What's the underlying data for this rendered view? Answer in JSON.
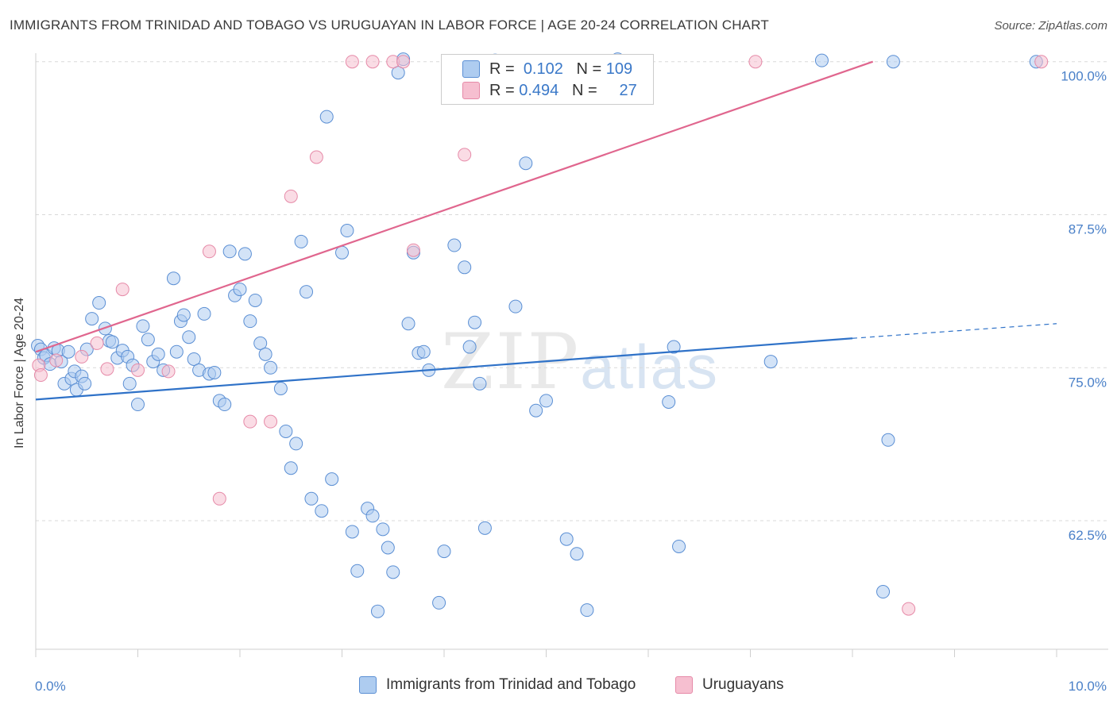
{
  "title": "IMMIGRANTS FROM TRINIDAD AND TOBAGO VS URUGUAYAN IN LABOR FORCE | AGE 20-24 CORRELATION CHART",
  "source": "Source: ZipAtlas.com",
  "watermark": {
    "zip": "ZIP",
    "atlas": "atlas"
  },
  "legend": {
    "rows": [
      {
        "r_label": "R =",
        "r_value": "0.102",
        "n_label": "N =",
        "n_value": "109"
      },
      {
        "r_label": "R =",
        "r_value": "0.494",
        "n_label": "N =",
        "n_value": "27"
      }
    ]
  },
  "bottom_legend": [
    "Immigrants from Trinidad and Tobago",
    "Uruguayans"
  ],
  "colors": {
    "blue_fill": "#aeccf0",
    "blue_stroke": "#5b8fd4",
    "blue_line": "#2f72c8",
    "pink_fill": "#f6bfd0",
    "pink_stroke": "#e68aa8",
    "pink_line": "#e0668e",
    "tick_text": "#4a80c8",
    "grid": "#d9d9d9"
  },
  "chart_data": {
    "type": "scatter",
    "title": "IMMIGRANTS FROM TRINIDAD AND TOBAGO VS URUGUAYAN IN LABOR FORCE | AGE 20-24 CORRELATION CHART",
    "xlabel": "",
    "ylabel": "In Labor Force | Age 20-24",
    "xlim": [
      0,
      10
    ],
    "ylim": [
      52,
      100.5
    ],
    "x_tick_labels": [
      {
        "value": 0,
        "label": "0.0%"
      },
      {
        "value": 10,
        "label": "10.0%"
      }
    ],
    "y_tick_labels": [
      {
        "value": 62.5,
        "label": "62.5%"
      },
      {
        "value": 75,
        "label": "75.0%"
      },
      {
        "value": 87.5,
        "label": "87.5%"
      },
      {
        "value": 100,
        "label": "100.0%"
      }
    ],
    "grid": "horizontal dashed",
    "legend_position": "top-center",
    "series": [
      {
        "name": "Immigrants from Trinidad and Tobago",
        "color": "#aeccf0",
        "points": [
          [
            0.02,
            76.8
          ],
          [
            0.05,
            76.5
          ],
          [
            0.08,
            75.8
          ],
          [
            0.1,
            76
          ],
          [
            0.14,
            75.3
          ],
          [
            0.18,
            76.6
          ],
          [
            0.22,
            76.4
          ],
          [
            0.25,
            75.5
          ],
          [
            0.28,
            73.7
          ],
          [
            0.32,
            76.3
          ],
          [
            0.35,
            74.1
          ],
          [
            0.38,
            74.7
          ],
          [
            0.4,
            73.2
          ],
          [
            0.45,
            74.3
          ],
          [
            0.48,
            73.7
          ],
          [
            0.5,
            76.5
          ],
          [
            0.55,
            79.0
          ],
          [
            0.62,
            80.3
          ],
          [
            0.68,
            78.2
          ],
          [
            0.72,
            77.2
          ],
          [
            0.75,
            77.1
          ],
          [
            0.8,
            75.8
          ],
          [
            0.85,
            76.4
          ],
          [
            0.9,
            75.9
          ],
          [
            0.92,
            73.7
          ],
          [
            0.95,
            75.2
          ],
          [
            1.0,
            72.0
          ],
          [
            1.05,
            78.4
          ],
          [
            1.1,
            77.3
          ],
          [
            1.15,
            75.5
          ],
          [
            1.2,
            76.1
          ],
          [
            1.25,
            74.8
          ],
          [
            1.35,
            82.3
          ],
          [
            1.38,
            76.3
          ],
          [
            1.42,
            78.8
          ],
          [
            1.45,
            79.3
          ],
          [
            1.5,
            77.5
          ],
          [
            1.55,
            75.7
          ],
          [
            1.6,
            74.8
          ],
          [
            1.65,
            79.4
          ],
          [
            1.7,
            74.5
          ],
          [
            1.75,
            74.6
          ],
          [
            1.8,
            72.3
          ],
          [
            1.85,
            72.0
          ],
          [
            1.9,
            84.5
          ],
          [
            1.95,
            80.9
          ],
          [
            2.0,
            81.4
          ],
          [
            2.05,
            84.3
          ],
          [
            2.1,
            78.8
          ],
          [
            2.15,
            80.5
          ],
          [
            2.2,
            77.0
          ],
          [
            2.25,
            76.1
          ],
          [
            2.3,
            75.0
          ],
          [
            2.4,
            73.3
          ],
          [
            2.45,
            69.8
          ],
          [
            2.5,
            66.8
          ],
          [
            2.55,
            68.8
          ],
          [
            2.6,
            85.3
          ],
          [
            2.65,
            81.2
          ],
          [
            2.7,
            64.3
          ],
          [
            2.8,
            63.3
          ],
          [
            2.85,
            95.5
          ],
          [
            2.9,
            65.9
          ],
          [
            3.0,
            84.4
          ],
          [
            3.05,
            86.2
          ],
          [
            3.1,
            61.6
          ],
          [
            3.15,
            58.4
          ],
          [
            3.25,
            63.5
          ],
          [
            3.3,
            62.9
          ],
          [
            3.35,
            55.1
          ],
          [
            3.4,
            61.8
          ],
          [
            3.45,
            60.3
          ],
          [
            3.5,
            58.3
          ],
          [
            3.55,
            99.1
          ],
          [
            3.6,
            100.2
          ],
          [
            3.65,
            78.6
          ],
          [
            3.7,
            84.4
          ],
          [
            3.75,
            76.2
          ],
          [
            3.8,
            76.3
          ],
          [
            3.85,
            74.8
          ],
          [
            3.95,
            55.8
          ],
          [
            4.0,
            60.0
          ],
          [
            4.1,
            85.0
          ],
          [
            4.2,
            83.2
          ],
          [
            4.25,
            76.7
          ],
          [
            4.3,
            78.7
          ],
          [
            4.35,
            73.7
          ],
          [
            4.4,
            61.9
          ],
          [
            4.5,
            100.1
          ],
          [
            4.6,
            100.0
          ],
          [
            4.7,
            80.0
          ],
          [
            4.8,
            91.7
          ],
          [
            4.9,
            71.5
          ],
          [
            5.0,
            72.3
          ],
          [
            5.2,
            61.0
          ],
          [
            5.3,
            59.8
          ],
          [
            5.4,
            55.2
          ],
          [
            5.5,
            97.2
          ],
          [
            5.7,
            100.2
          ],
          [
            5.8,
            100.0
          ],
          [
            6.2,
            72.2
          ],
          [
            6.25,
            76.7
          ],
          [
            6.3,
            60.4
          ],
          [
            7.2,
            75.5
          ],
          [
            7.7,
            100.1
          ],
          [
            8.3,
            56.7
          ],
          [
            8.35,
            69.1
          ],
          [
            8.4,
            100.0
          ],
          [
            9.8,
            100.0
          ]
        ]
      },
      {
        "name": "Uruguayans",
        "color": "#f6bfd0",
        "points": [
          [
            0.03,
            75.2
          ],
          [
            0.05,
            74.4
          ],
          [
            0.2,
            75.6
          ],
          [
            0.45,
            75.9
          ],
          [
            0.6,
            77.0
          ],
          [
            0.7,
            74.9
          ],
          [
            0.85,
            81.4
          ],
          [
            1.0,
            74.8
          ],
          [
            1.3,
            74.7
          ],
          [
            1.7,
            84.5
          ],
          [
            1.8,
            64.3
          ],
          [
            2.1,
            70.6
          ],
          [
            2.3,
            70.6
          ],
          [
            2.5,
            89.0
          ],
          [
            2.75,
            92.2
          ],
          [
            3.1,
            100.0
          ],
          [
            3.3,
            100.0
          ],
          [
            3.5,
            100.0
          ],
          [
            3.6,
            100.0
          ],
          [
            3.7,
            84.6
          ],
          [
            4.05,
            100.0
          ],
          [
            4.2,
            92.4
          ],
          [
            5.5,
            100.0
          ],
          [
            5.75,
            100.0
          ],
          [
            7.05,
            100.0
          ],
          [
            8.55,
            55.3
          ],
          [
            9.85,
            100.0
          ]
        ]
      }
    ],
    "trend_lines": [
      {
        "series": "Immigrants from Trinidad and Tobago",
        "x": [
          0,
          8.0,
          10.0
        ],
        "y": [
          72.4,
          77.4,
          78.6
        ],
        "dashed_from_x": 8.0
      },
      {
        "series": "Uruguayans",
        "x": [
          0,
          8.2
        ],
        "y": [
          76.3,
          100.0
        ]
      }
    ]
  }
}
